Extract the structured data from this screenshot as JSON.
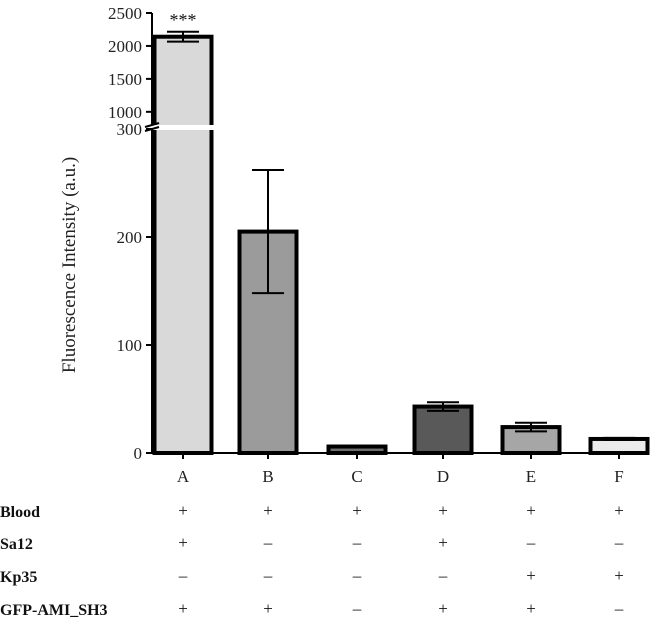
{
  "chart_data": {
    "type": "bar",
    "ylabel": "Fluorescence Intensity (a.u.)",
    "xlabel": "",
    "categories": [
      "A",
      "B",
      "C",
      "D",
      "E",
      "F"
    ],
    "values": [
      2140,
      205,
      6,
      43,
      24,
      13
    ],
    "errors": [
      75,
      57,
      0,
      4,
      4,
      1
    ],
    "fills": [
      "#d9d9d9",
      "#9b9b9b",
      "#6e6e6e",
      "#595959",
      "#a6a6a6",
      "#ebebeb"
    ],
    "annotations": [
      {
        "category": "A",
        "text": "***"
      }
    ],
    "y_axis_broken": true,
    "lower_segment": {
      "ylim": [
        0,
        300
      ],
      "ticks": [
        0,
        100,
        200,
        300
      ]
    },
    "upper_segment": {
      "ylim": [
        800,
        2500
      ],
      "ticks": [
        1000,
        1500,
        2000,
        2500
      ]
    },
    "grid": false,
    "legend": "none",
    "conditions": [
      {
        "label": "Blood",
        "signs": [
          "+",
          "+",
          "+",
          "+",
          "+",
          "+"
        ]
      },
      {
        "label": "Sa12",
        "signs": [
          "+",
          "–",
          "–",
          "+",
          "–",
          "–"
        ]
      },
      {
        "label": "Kp35",
        "signs": [
          "–",
          "–",
          "–",
          "–",
          "+",
          "+"
        ]
      },
      {
        "label": "GFP-AMI_SH3",
        "signs": [
          "+",
          "+",
          "–",
          "+",
          "+",
          "–"
        ]
      }
    ]
  }
}
